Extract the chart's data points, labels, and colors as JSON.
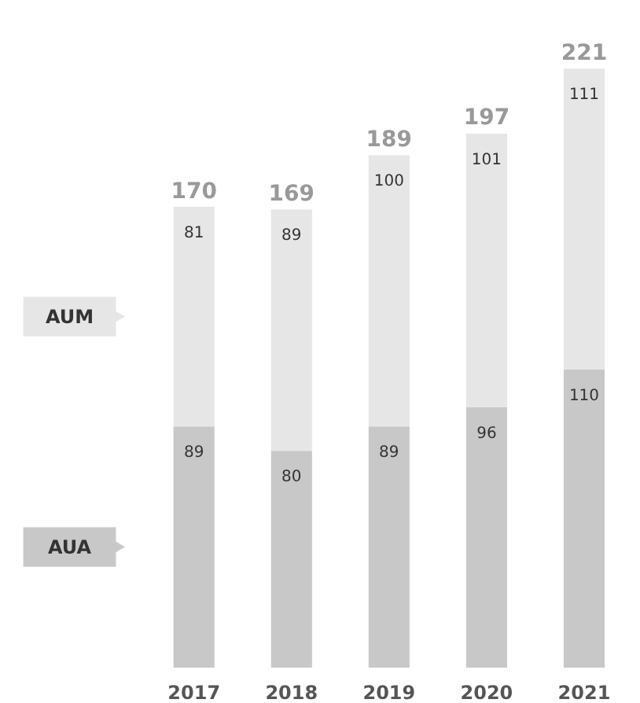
{
  "chart_data": {
    "type": "bar",
    "stacked": true,
    "categories": [
      "2017",
      "2018",
      "2019",
      "2020",
      "2021"
    ],
    "series": [
      {
        "name": "AUA",
        "color": "#c8c8c8",
        "values": [
          89,
          80,
          89,
          96,
          110
        ]
      },
      {
        "name": "AUM",
        "color": "#e6e6e6",
        "values": [
          81,
          89,
          100,
          101,
          111
        ]
      }
    ],
    "totals": [
      "170",
      "169",
      "189",
      "197",
      "221"
    ],
    "data_labels": true,
    "legend": "left",
    "grid": false
  }
}
